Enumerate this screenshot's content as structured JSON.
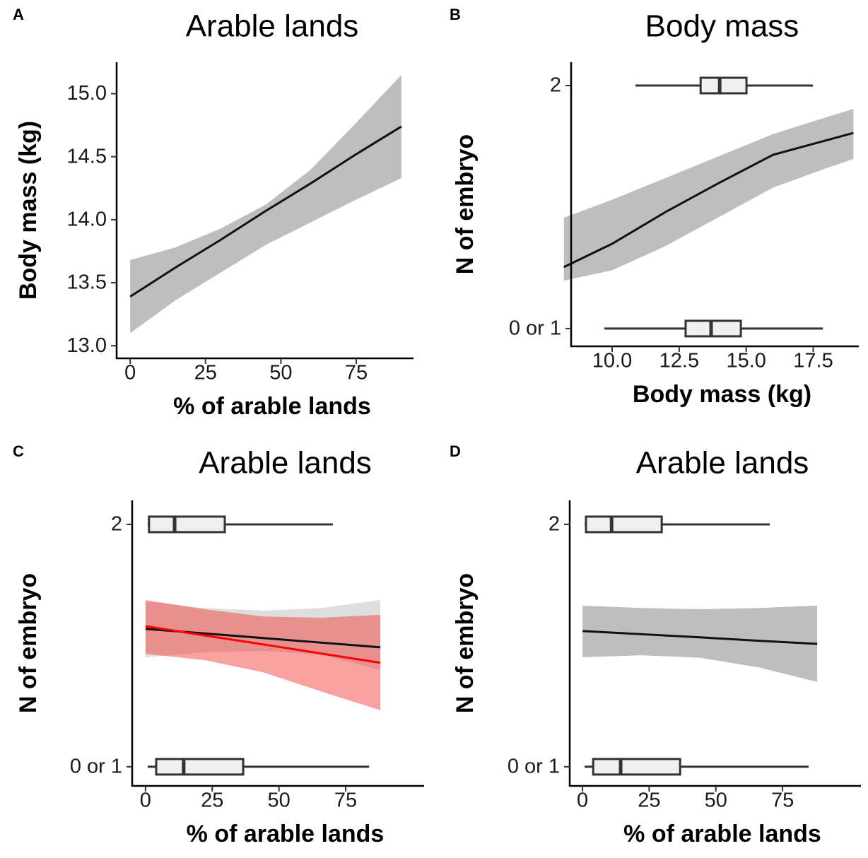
{
  "chart_data": [
    {
      "type": "line",
      "panel_label": "A",
      "title": "Arable lands",
      "xlabel": "% of arable lands",
      "ylabel": "Body mass (kg)",
      "xlim": [
        -4.5,
        94
      ],
      "ylim": [
        12.9,
        15.25
      ],
      "xticks": [
        0,
        25,
        50,
        75
      ],
      "yticks": [
        {
          "value": 13,
          "label": "13.0"
        },
        13.5,
        {
          "value": 14,
          "label": "14.0"
        },
        14.5,
        {
          "value": 15,
          "label": "15.0"
        }
      ],
      "x": [
        0,
        15,
        30,
        45,
        60,
        75,
        90
      ],
      "series": [
        {
          "color": "#111111",
          "ribbon_color": "#bebebe",
          "ribbon_opacity": 1,
          "values": [
            13.39,
            13.62,
            13.84,
            14.07,
            14.29,
            14.52,
            14.74
          ],
          "upper": [
            13.68,
            13.78,
            13.93,
            14.12,
            14.4,
            14.77,
            15.15
          ],
          "lower": [
            13.1,
            13.36,
            13.58,
            13.8,
            13.98,
            14.16,
            14.33
          ]
        }
      ],
      "boxplots": []
    },
    {
      "type": "line",
      "panel_label": "B",
      "title": "Body mass",
      "xlabel": "Body mass (kg)",
      "ylabel": "N of embryo",
      "xlim": [
        8.47,
        19.2
      ],
      "ylim": [
        0.927,
        2.096
      ],
      "xticks": [
        {
          "value": 10,
          "label": "10.0"
        },
        12.5,
        {
          "value": 15,
          "label": "15.0"
        },
        17.5
      ],
      "yticks": [
        {
          "value": 1,
          "label": "0 or 1"
        },
        2
      ],
      "x": [
        8.2,
        10,
        12,
        14,
        16,
        18,
        19
      ],
      "series": [
        {
          "color": "#111111",
          "ribbon_color": "#bebebe",
          "ribbon_opacity": 1,
          "values": [
            1.253,
            1.349,
            1.48,
            1.6,
            1.715,
            1.775,
            1.805
          ],
          "upper": [
            1.456,
            1.53,
            1.62,
            1.71,
            1.8,
            1.87,
            1.904
          ],
          "lower": [
            1.197,
            1.24,
            1.34,
            1.46,
            1.58,
            1.66,
            1.698
          ]
        }
      ],
      "boxplots": [
        {
          "min": 9.71,
          "q1": 12.74,
          "median": 13.69,
          "q3": 14.8,
          "max": 17.86
        },
        {
          "min": 10.87,
          "q1": 13.3,
          "median": 14.01,
          "q3": 15.01,
          "max": 17.49
        }
      ]
    },
    {
      "type": "line",
      "panel_label": "C",
      "title": "Arable lands",
      "xlabel": "% of arable lands",
      "ylabel": "N of embryo",
      "xlim": [
        -5,
        104.4
      ],
      "ylim": [
        0.921,
        2.099
      ],
      "xticks": [
        0,
        25,
        50,
        75
      ],
      "yticks": [
        {
          "value": 1,
          "label": "0 or 1"
        },
        2
      ],
      "x": [
        0,
        22,
        44,
        66,
        88
      ],
      "series": [
        {
          "color": "#111111",
          "ribbon_color": "#bebebe",
          "ribbon_opacity": 0.5,
          "values": [
            1.569,
            1.55,
            1.531,
            1.512,
            1.493
          ],
          "upper": [
            1.682,
            1.655,
            1.644,
            1.655,
            1.688
          ],
          "lower": [
            1.452,
            1.472,
            1.478,
            1.462,
            1.4
          ]
        },
        {
          "color": "#ff0000",
          "ribbon_color": "#f03030",
          "ribbon_opacity": 0.45,
          "values": [
            1.58,
            1.542,
            1.505,
            1.467,
            1.429
          ],
          "upper": [
            1.688,
            1.65,
            1.62,
            1.615,
            1.627
          ],
          "lower": [
            1.466,
            1.44,
            1.39,
            1.31,
            1.233
          ]
        }
      ],
      "boxplots": [
        {
          "min": 0.8,
          "q1": 4.0,
          "median": 14.3,
          "q3": 36.6,
          "max": 83.8
        },
        {
          "min": 0.8,
          "q1": 1.3,
          "median": 10.9,
          "q3": 29.7,
          "max": 70.2
        }
      ]
    },
    {
      "type": "line",
      "panel_label": "D",
      "title": "Arable lands",
      "xlabel": "% of arable lands",
      "ylabel": "N of embryo",
      "xlim": [
        -4.8,
        104.4
      ],
      "ylim": [
        0.921,
        2.099
      ],
      "xticks": [
        0,
        25,
        50,
        75
      ],
      "yticks": [
        {
          "value": 1,
          "label": "0 or 1"
        },
        2
      ],
      "x": [
        0,
        22,
        44,
        66,
        88
      ],
      "series": [
        {
          "color": "#111111",
          "ribbon_color": "#bebebe",
          "ribbon_opacity": 1,
          "values": [
            1.56,
            1.547,
            1.534,
            1.52,
            1.507
          ],
          "upper": [
            1.665,
            1.655,
            1.65,
            1.655,
            1.665
          ],
          "lower": [
            1.452,
            1.46,
            1.45,
            1.41,
            1.35
          ]
        }
      ],
      "boxplots": [
        {
          "min": 0.8,
          "q1": 4.0,
          "median": 14.3,
          "q3": 36.6,
          "max": 84.8
        },
        {
          "min": 0.8,
          "q1": 1.3,
          "median": 10.9,
          "q3": 29.7,
          "max": 70.2
        }
      ]
    }
  ]
}
